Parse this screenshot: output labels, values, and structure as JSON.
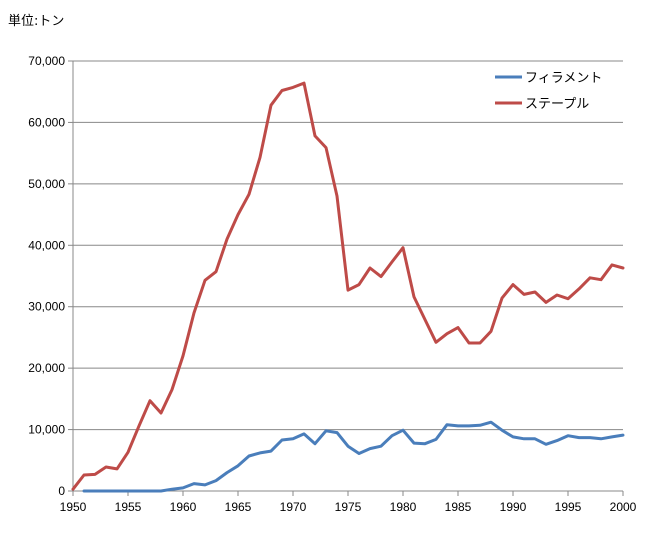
{
  "unit_label": "単位:トン",
  "colors": {
    "filament": "#4a7ebb",
    "staple": "#be4b48",
    "grid": "#888888",
    "axis": "#888888"
  },
  "chart_data": {
    "type": "line",
    "title": "",
    "xlabel": "",
    "ylabel": "",
    "xlim": [
      1950,
      2000
    ],
    "ylim": [
      0,
      70000
    ],
    "x_ticks": [
      1950,
      1955,
      1960,
      1965,
      1970,
      1975,
      1980,
      1985,
      1990,
      1995,
      2000
    ],
    "y_ticks": [
      0,
      10000,
      20000,
      30000,
      40000,
      50000,
      60000,
      70000
    ],
    "y_tick_labels": [
      "0",
      "10,000",
      "20,000",
      "30,000",
      "40,000",
      "50,000",
      "60,000",
      "70,000"
    ],
    "grid": "horizontal",
    "legend": "top-right",
    "series": [
      {
        "name": "フィラメント",
        "color": "#4a7ebb",
        "x": [
          1951,
          1952,
          1953,
          1954,
          1955,
          1956,
          1957,
          1958,
          1959,
          1960,
          1961,
          1962,
          1963,
          1964,
          1965,
          1966,
          1967,
          1968,
          1969,
          1970,
          1971,
          1972,
          1973,
          1974,
          1975,
          1976,
          1977,
          1978,
          1979,
          1980,
          1981,
          1982,
          1983,
          1984,
          1985,
          1986,
          1987,
          1988,
          1989,
          1990,
          1991,
          1992,
          1993,
          1994,
          1995,
          1996,
          1997,
          1998,
          1999,
          2000
        ],
        "values": [
          0,
          0,
          0,
          0,
          0,
          0,
          0,
          0,
          300,
          500,
          1200,
          1000,
          1700,
          3000,
          4100,
          5700,
          6200,
          6500,
          8300,
          8500,
          9300,
          7700,
          9800,
          9500,
          7300,
          6100,
          6900,
          7300,
          9000,
          9900,
          7800,
          7700,
          8400,
          10800,
          10600,
          10600,
          10700,
          11200,
          9900,
          8800,
          8500,
          8500,
          7600,
          8200,
          9000,
          8700,
          8700,
          8500,
          8800,
          9100
        ]
      },
      {
        "name": "ステープル",
        "color": "#be4b48",
        "x": [
          1950,
          1951,
          1952,
          1953,
          1954,
          1955,
          1956,
          1957,
          1958,
          1959,
          1960,
          1961,
          1962,
          1963,
          1964,
          1965,
          1966,
          1967,
          1968,
          1969,
          1970,
          1971,
          1972,
          1973,
          1974,
          1975,
          1976,
          1977,
          1978,
          1979,
          1980,
          1981,
          1982,
          1983,
          1984,
          1985,
          1986,
          1987,
          1988,
          1989,
          1990,
          1991,
          1992,
          1993,
          1994,
          1995,
          1996,
          1997,
          1998,
          1999,
          2000
        ],
        "values": [
          300,
          2600,
          2700,
          3900,
          3600,
          6300,
          10600,
          14700,
          12700,
          16500,
          22000,
          29000,
          34300,
          35700,
          41000,
          45000,
          48300,
          54300,
          62800,
          65200,
          65700,
          66400,
          57800,
          55900,
          48000,
          32700,
          33600,
          36300,
          34900,
          37300,
          39600,
          31600,
          27900,
          24200,
          25600,
          26600,
          24100,
          24100,
          26000,
          31400,
          33600,
          32000,
          32400,
          30700,
          31900,
          31300,
          32900,
          34700,
          34400,
          36800,
          36300
        ]
      }
    ]
  }
}
